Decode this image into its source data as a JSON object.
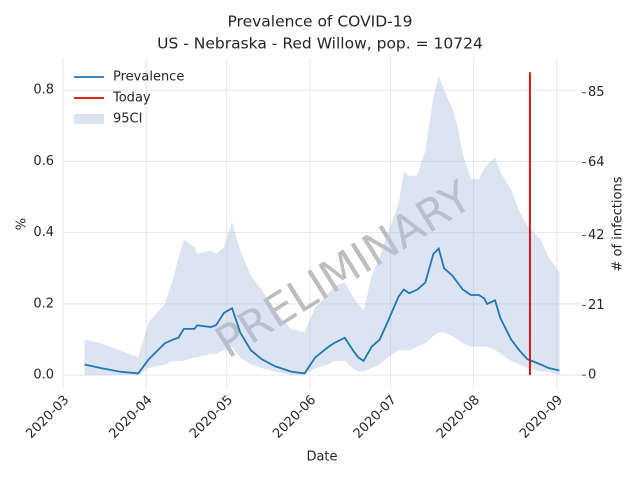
{
  "chart_data": {
    "type": "line",
    "title": "Prevalence of COVID-19",
    "subtitle": "US - Nebraska - Red Willow, pop. = 10724",
    "x_label": "Date",
    "y_label": "%",
    "y2_label": "# of infections",
    "watermark": "PRELIMINARY",
    "x": [
      8,
      14,
      21,
      28,
      32,
      38,
      41,
      43,
      45,
      49,
      50,
      55,
      57,
      60,
      63,
      66,
      70,
      74,
      79,
      85,
      90,
      94,
      99,
      101,
      105,
      108,
      110,
      112,
      115,
      118,
      121,
      125,
      127,
      129,
      132,
      135,
      138,
      140,
      142,
      145,
      147,
      149,
      152,
      155,
      157,
      158,
      161,
      163,
      167,
      170,
      173,
      178,
      181,
      185
    ],
    "series": [
      {
        "name": "Prevalence",
        "color": "#1f77b4",
        "values": [
          0.03,
          0.02,
          0.01,
          0.005,
          0.045,
          0.09,
          0.1,
          0.105,
          0.13,
          0.13,
          0.14,
          0.135,
          0.14,
          0.175,
          0.188,
          0.12,
          0.07,
          0.045,
          0.025,
          0.01,
          0.005,
          0.05,
          0.08,
          0.09,
          0.105,
          0.07,
          0.05,
          0.04,
          0.08,
          0.1,
          0.15,
          0.22,
          0.24,
          0.23,
          0.24,
          0.26,
          0.34,
          0.355,
          0.3,
          0.28,
          0.26,
          0.24,
          0.225,
          0.225,
          0.215,
          0.2,
          0.21,
          0.16,
          0.1,
          0.07,
          0.045,
          0.03,
          0.02,
          0.013
        ]
      },
      {
        "name": "95CI",
        "color": "#b0c4de",
        "lower": [
          0,
          0,
          0,
          0,
          0.02,
          0.03,
          0.04,
          0.04,
          0.04,
          0.05,
          0.05,
          0.06,
          0.06,
          0.07,
          0.08,
          0.05,
          0.03,
          0.02,
          0.01,
          0,
          0,
          0.02,
          0.03,
          0.04,
          0.04,
          0.02,
          0.01,
          0.01,
          0.02,
          0.03,
          0.05,
          0.07,
          0.07,
          0.07,
          0.08,
          0.09,
          0.11,
          0.12,
          0.12,
          0.11,
          0.1,
          0.09,
          0.08,
          0.08,
          0.08,
          0.08,
          0.07,
          0.06,
          0.04,
          0.03,
          0.02,
          0.01,
          0.01,
          0
        ],
        "upper": [
          0.1,
          0.09,
          0.07,
          0.05,
          0.15,
          0.2,
          0.27,
          0.33,
          0.38,
          0.36,
          0.34,
          0.35,
          0.34,
          0.36,
          0.43,
          0.35,
          0.28,
          0.24,
          0.18,
          0.13,
          0.12,
          0.19,
          0.23,
          0.25,
          0.26,
          0.22,
          0.2,
          0.18,
          0.28,
          0.33,
          0.4,
          0.48,
          0.57,
          0.56,
          0.56,
          0.63,
          0.78,
          0.84,
          0.8,
          0.75,
          0.7,
          0.62,
          0.55,
          0.55,
          0.58,
          0.59,
          0.61,
          0.57,
          0.52,
          0.46,
          0.42,
          0.38,
          0.33,
          0.29
        ]
      }
    ],
    "today": {
      "name": "Today",
      "color": "#e00000",
      "x": 174,
      "y": [
        0,
        0.85
      ]
    },
    "xlim": [
      -0.4,
      193.4
    ],
    "xticks": [
      {
        "value": 0,
        "label": "2020-03"
      },
      {
        "value": 31,
        "label": "2020-04"
      },
      {
        "value": 61,
        "label": "2020-05"
      },
      {
        "value": 92,
        "label": "2020-06"
      },
      {
        "value": 122,
        "label": "2020-07"
      },
      {
        "value": 153,
        "label": "2020-08"
      },
      {
        "value": 184,
        "label": "2020-09"
      }
    ],
    "ylim": [
      -0.036,
      0.89
    ],
    "yticks": [
      {
        "value": 0,
        "label": "0.0"
      },
      0.2,
      0.4,
      0.6,
      0.8
    ],
    "y2lim": [
      -3.86,
      95.44
    ],
    "y2ticks": [
      0,
      21,
      42,
      64,
      85
    ],
    "grid": true,
    "legend": "upper left"
  }
}
